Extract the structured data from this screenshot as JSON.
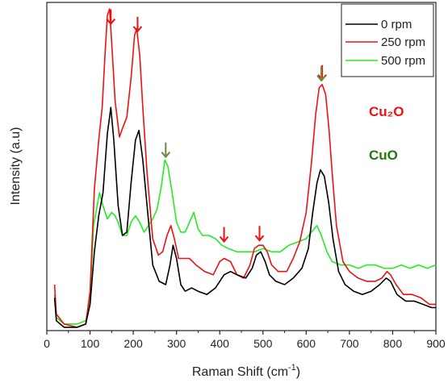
{
  "chart_data": {
    "type": "line",
    "xlabel": "Raman Shift (cm",
    "xlabel_sup": "-1",
    "xlabel_close": ")",
    "ylabel": "Intensity (a.u)",
    "xlim": [
      0,
      900
    ],
    "ylim": [
      0,
      100
    ],
    "x_ticks": [
      0,
      100,
      200,
      300,
      400,
      500,
      600,
      700,
      800,
      900
    ],
    "y_ticks_shown": false,
    "grid": false,
    "legend_position": "top-right",
    "series": [
      {
        "name": "0 rpm",
        "color": "#000000",
        "points": [
          [
            18,
            10
          ],
          [
            22,
            3
          ],
          [
            40,
            1
          ],
          [
            70,
            1
          ],
          [
            90,
            2
          ],
          [
            100,
            8
          ],
          [
            110,
            24
          ],
          [
            120,
            35
          ],
          [
            130,
            42
          ],
          [
            140,
            60
          ],
          [
            148,
            68
          ],
          [
            155,
            58
          ],
          [
            165,
            38
          ],
          [
            175,
            29
          ],
          [
            185,
            30
          ],
          [
            195,
            45
          ],
          [
            205,
            58
          ],
          [
            213,
            61
          ],
          [
            222,
            52
          ],
          [
            232,
            38
          ],
          [
            245,
            20
          ],
          [
            260,
            15
          ],
          [
            275,
            14
          ],
          [
            285,
            20
          ],
          [
            292,
            26
          ],
          [
            300,
            22
          ],
          [
            310,
            14
          ],
          [
            320,
            12
          ],
          [
            335,
            13
          ],
          [
            350,
            12
          ],
          [
            370,
            11
          ],
          [
            390,
            13
          ],
          [
            410,
            17
          ],
          [
            425,
            18
          ],
          [
            440,
            17
          ],
          [
            460,
            16
          ],
          [
            475,
            19
          ],
          [
            485,
            23
          ],
          [
            495,
            24
          ],
          [
            505,
            21
          ],
          [
            515,
            17
          ],
          [
            530,
            15
          ],
          [
            550,
            14
          ],
          [
            570,
            16
          ],
          [
            590,
            19
          ],
          [
            605,
            25
          ],
          [
            615,
            36
          ],
          [
            625,
            45
          ],
          [
            633,
            49
          ],
          [
            642,
            47
          ],
          [
            652,
            39
          ],
          [
            662,
            28
          ],
          [
            675,
            18
          ],
          [
            690,
            14
          ],
          [
            710,
            12
          ],
          [
            730,
            11
          ],
          [
            750,
            12
          ],
          [
            770,
            14
          ],
          [
            785,
            16
          ],
          [
            795,
            15
          ],
          [
            810,
            11
          ],
          [
            830,
            9
          ],
          [
            850,
            9
          ],
          [
            870,
            8
          ],
          [
            890,
            7
          ],
          [
            900,
            7
          ]
        ]
      },
      {
        "name": "250 rpm",
        "color": "#ee1111",
        "points": [
          [
            18,
            14
          ],
          [
            22,
            5
          ],
          [
            40,
            2
          ],
          [
            70,
            1
          ],
          [
            90,
            2
          ],
          [
            100,
            12
          ],
          [
            110,
            43
          ],
          [
            120,
            58
          ],
          [
            128,
            68
          ],
          [
            135,
            85
          ],
          [
            140,
            96
          ],
          [
            145,
            98
          ],
          [
            150,
            88
          ],
          [
            158,
            70
          ],
          [
            168,
            59
          ],
          [
            176,
            62
          ],
          [
            185,
            65
          ],
          [
            195,
            77
          ],
          [
            203,
            90
          ],
          [
            208,
            92
          ],
          [
            215,
            84
          ],
          [
            222,
            68
          ],
          [
            232,
            48
          ],
          [
            245,
            28
          ],
          [
            258,
            23
          ],
          [
            268,
            24
          ],
          [
            278,
            29
          ],
          [
            287,
            32
          ],
          [
            295,
            28
          ],
          [
            305,
            22
          ],
          [
            315,
            22
          ],
          [
            330,
            22
          ],
          [
            345,
            20
          ],
          [
            365,
            18
          ],
          [
            385,
            17
          ],
          [
            400,
            21
          ],
          [
            410,
            22
          ],
          [
            425,
            21
          ],
          [
            440,
            17
          ],
          [
            455,
            16
          ],
          [
            470,
            20
          ],
          [
            480,
            25
          ],
          [
            490,
            26
          ],
          [
            500,
            26
          ],
          [
            510,
            24
          ],
          [
            520,
            20
          ],
          [
            535,
            18
          ],
          [
            555,
            18
          ],
          [
            570,
            22
          ],
          [
            585,
            27
          ],
          [
            600,
            36
          ],
          [
            612,
            51
          ],
          [
            622,
            66
          ],
          [
            630,
            74
          ],
          [
            637,
            75
          ],
          [
            645,
            72
          ],
          [
            653,
            61
          ],
          [
            660,
            48
          ],
          [
            670,
            32
          ],
          [
            685,
            21
          ],
          [
            700,
            18
          ],
          [
            720,
            16
          ],
          [
            740,
            15
          ],
          [
            760,
            15
          ],
          [
            775,
            16
          ],
          [
            787,
            18
          ],
          [
            795,
            17
          ],
          [
            808,
            14
          ],
          [
            825,
            11
          ],
          [
            845,
            11
          ],
          [
            865,
            10
          ],
          [
            885,
            8
          ],
          [
            900,
            8
          ]
        ]
      },
      {
        "name": "500 rpm",
        "color": "#22ee22",
        "points": [
          [
            18,
            11
          ],
          [
            22,
            4
          ],
          [
            40,
            2
          ],
          [
            70,
            2
          ],
          [
            90,
            3
          ],
          [
            100,
            9
          ],
          [
            108,
            32
          ],
          [
            115,
            37
          ],
          [
            122,
            42
          ],
          [
            130,
            38
          ],
          [
            140,
            34
          ],
          [
            150,
            36
          ],
          [
            158,
            35
          ],
          [
            165,
            33
          ],
          [
            175,
            29
          ],
          [
            185,
            29
          ],
          [
            195,
            33
          ],
          [
            205,
            35
          ],
          [
            215,
            33
          ],
          [
            225,
            30
          ],
          [
            235,
            32
          ],
          [
            245,
            34
          ],
          [
            255,
            37
          ],
          [
            265,
            44
          ],
          [
            273,
            52
          ],
          [
            280,
            50
          ],
          [
            290,
            42
          ],
          [
            300,
            33
          ],
          [
            310,
            30
          ],
          [
            320,
            30
          ],
          [
            330,
            33
          ],
          [
            340,
            36
          ],
          [
            350,
            31
          ],
          [
            360,
            29
          ],
          [
            375,
            29
          ],
          [
            390,
            28
          ],
          [
            405,
            26
          ],
          [
            420,
            25
          ],
          [
            440,
            24
          ],
          [
            460,
            24
          ],
          [
            480,
            24
          ],
          [
            500,
            25
          ],
          [
            520,
            24
          ],
          [
            540,
            24
          ],
          [
            560,
            26
          ],
          [
            580,
            27
          ],
          [
            600,
            28
          ],
          [
            612,
            30
          ],
          [
            625,
            32
          ],
          [
            635,
            29
          ],
          [
            648,
            24
          ],
          [
            660,
            21
          ],
          [
            680,
            20
          ],
          [
            700,
            20
          ],
          [
            720,
            19
          ],
          [
            740,
            20
          ],
          [
            760,
            20
          ],
          [
            780,
            19
          ],
          [
            800,
            19
          ],
          [
            820,
            20
          ],
          [
            840,
            19
          ],
          [
            860,
            20
          ],
          [
            880,
            19
          ],
          [
            900,
            20
          ]
        ]
      }
    ],
    "annotations": {
      "cu2o_label": "Cu₂O",
      "cu2o_color": "#ee1111",
      "cuo_label": "CuO",
      "cuo_color": "#227a0a"
    },
    "peak_markers": [
      {
        "x": 148,
        "color": "#ee1111"
      },
      {
        "x": 210,
        "color": "#ee1111"
      },
      {
        "x": 410,
        "color": "#ee1111"
      },
      {
        "x": 492,
        "color": "#ee1111"
      },
      {
        "x": 637,
        "color": "#ee1111"
      },
      {
        "x": 275,
        "color": "#6a8a3a"
      },
      {
        "x": 635,
        "color": "#6a8a3a"
      }
    ]
  }
}
